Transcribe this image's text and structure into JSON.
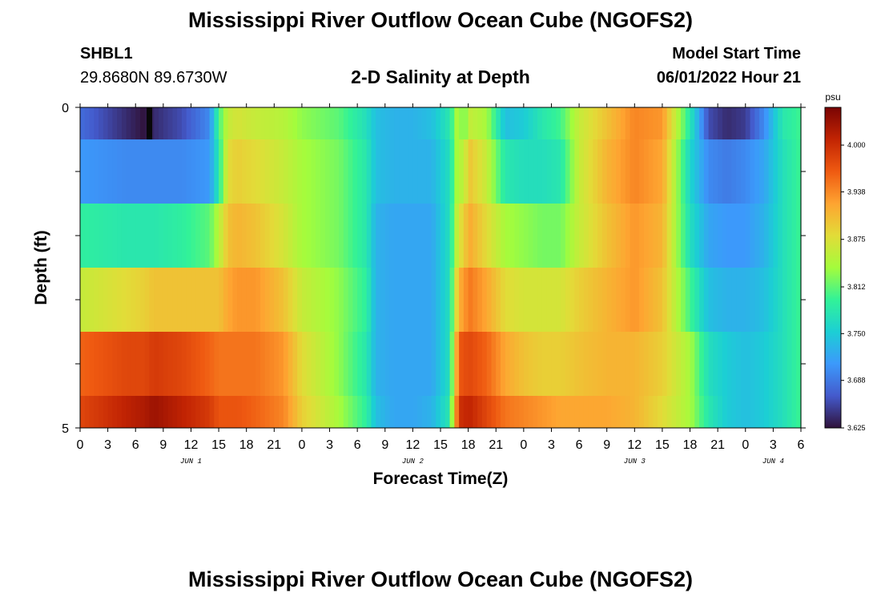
{
  "header": {
    "title": "Mississippi River Outflow Ocean Cube (NGOFS2)",
    "station": "SHBL1",
    "coords": "29.8680N  89.6730W",
    "subtitle": "2-D Salinity at Depth",
    "model_start_label": "Model Start Time",
    "model_start_value": "06/01/2022 Hour 21"
  },
  "footer": {
    "title": "Mississippi River Outflow Ocean Cube (NGOFS2)"
  },
  "chart_data": {
    "type": "heatmap",
    "xlabel": "Forecast Time(Z)",
    "ylabel": "Depth (ft)",
    "x_tick_labels": [
      "0",
      "3",
      "6",
      "9",
      "12",
      "15",
      "18",
      "21",
      "0",
      "3",
      "6",
      "9",
      "12",
      "15",
      "18",
      "21",
      "0",
      "3",
      "6",
      "9",
      "12",
      "15",
      "18",
      "21",
      "0",
      "3",
      "6"
    ],
    "date_labels": [
      {
        "text": "JUN 1",
        "hour": 12
      },
      {
        "text": "JUN 2",
        "hour": 36
      },
      {
        "text": "JUN 3",
        "hour": 60
      },
      {
        "text": "JUN 4",
        "hour": 75
      }
    ],
    "x_range_hours": [
      0,
      78
    ],
    "y_tick_labels": [
      "0",
      "5"
    ],
    "ylim": [
      0,
      5
    ],
    "colorbar": {
      "unit": "psu",
      "min": 3.625,
      "max": 4.05,
      "tick_labels": [
        "4.000",
        "3.938",
        "3.875",
        "3.812",
        "3.750",
        "3.688",
        "3.625"
      ],
      "ticks": [
        4.0,
        3.938,
        3.875,
        3.812,
        3.75,
        3.688,
        3.625
      ]
    },
    "depth_bands_ft": [
      0,
      0.5,
      1.5,
      2.5,
      3.5,
      4.5,
      5.0
    ],
    "time_key_hours": [
      0,
      5,
      7,
      8,
      11,
      14,
      15,
      16,
      17,
      19,
      22,
      24,
      28,
      31,
      32,
      34,
      36,
      38,
      40,
      41,
      41.5,
      42,
      44,
      46,
      48,
      50,
      52,
      54,
      57,
      60,
      63,
      66,
      68,
      70,
      72,
      74,
      76,
      78
    ],
    "salinity": [
      [
        3.68,
        3.64,
        3.625,
        3.64,
        3.66,
        3.7,
        3.8,
        3.86,
        3.87,
        3.86,
        3.85,
        3.83,
        3.81,
        3.77,
        3.74,
        3.73,
        3.73,
        3.74,
        3.78,
        3.86,
        3.8,
        3.86,
        3.84,
        3.74,
        3.75,
        3.78,
        3.8,
        3.86,
        3.9,
        3.94,
        3.93,
        3.78,
        3.66,
        3.64,
        3.65,
        3.7,
        3.78,
        3.8
      ],
      [
        3.71,
        3.7,
        3.7,
        3.7,
        3.7,
        3.71,
        3.78,
        3.88,
        3.89,
        3.88,
        3.86,
        3.84,
        3.82,
        3.78,
        3.74,
        3.73,
        3.73,
        3.73,
        3.77,
        3.86,
        3.84,
        3.9,
        3.86,
        3.78,
        3.77,
        3.77,
        3.78,
        3.86,
        3.91,
        3.94,
        3.92,
        3.76,
        3.7,
        3.69,
        3.7,
        3.72,
        3.77,
        3.8
      ],
      [
        3.79,
        3.78,
        3.78,
        3.78,
        3.79,
        3.81,
        3.85,
        3.9,
        3.91,
        3.9,
        3.87,
        3.84,
        3.82,
        3.78,
        3.73,
        3.72,
        3.72,
        3.72,
        3.77,
        3.88,
        3.88,
        3.92,
        3.88,
        3.84,
        3.83,
        3.82,
        3.82,
        3.86,
        3.9,
        3.93,
        3.91,
        3.77,
        3.72,
        3.71,
        3.71,
        3.73,
        3.77,
        3.8
      ],
      [
        3.86,
        3.88,
        3.89,
        3.9,
        3.9,
        3.9,
        3.9,
        3.92,
        3.93,
        3.93,
        3.9,
        3.86,
        3.83,
        3.79,
        3.73,
        3.72,
        3.72,
        3.72,
        3.77,
        3.92,
        3.92,
        3.95,
        3.92,
        3.88,
        3.87,
        3.87,
        3.87,
        3.89,
        3.91,
        3.93,
        3.9,
        3.8,
        3.74,
        3.73,
        3.73,
        3.74,
        3.77,
        3.8
      ],
      [
        3.96,
        3.98,
        3.98,
        3.99,
        3.98,
        3.96,
        3.95,
        3.95,
        3.95,
        3.95,
        3.93,
        3.88,
        3.83,
        3.78,
        3.73,
        3.72,
        3.72,
        3.72,
        3.77,
        3.97,
        3.97,
        3.98,
        3.96,
        3.92,
        3.9,
        3.89,
        3.89,
        3.9,
        3.91,
        3.91,
        3.89,
        3.84,
        3.77,
        3.75,
        3.74,
        3.75,
        3.77,
        3.8
      ],
      [
        3.98,
        4.01,
        4.02,
        4.03,
        4.01,
        3.99,
        3.97,
        3.97,
        3.97,
        3.96,
        3.94,
        3.89,
        3.84,
        3.79,
        3.74,
        3.72,
        3.72,
        3.73,
        3.78,
        4.0,
        4.0,
        4.01,
        3.98,
        3.95,
        3.94,
        3.93,
        3.92,
        3.92,
        3.92,
        3.91,
        3.88,
        3.84,
        3.78,
        3.75,
        3.74,
        3.75,
        3.77,
        3.8
      ]
    ]
  }
}
